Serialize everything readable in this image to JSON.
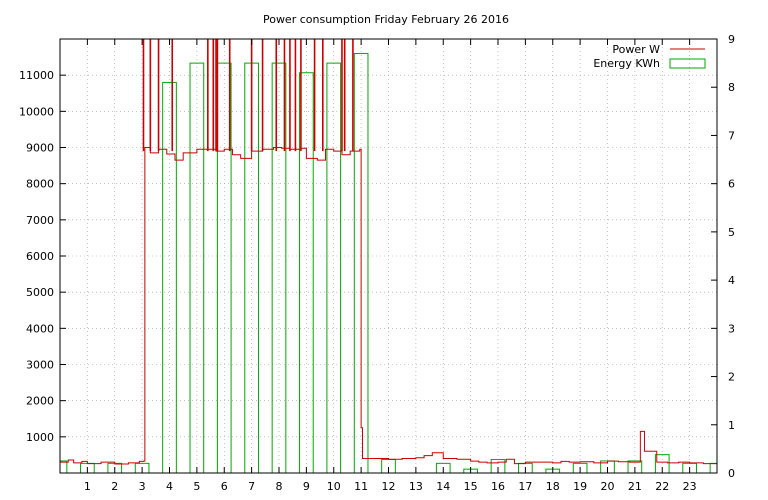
{
  "chart_data": {
    "type": "bar+line",
    "title": "Power consumption Friday February 26 2016",
    "x": {
      "range": [
        0,
        24
      ],
      "ticks": [
        1,
        2,
        3,
        4,
        5,
        6,
        7,
        8,
        9,
        10,
        11,
        12,
        13,
        14,
        15,
        16,
        17,
        18,
        19,
        20,
        21,
        22,
        23
      ]
    },
    "y_left": {
      "range": [
        0,
        12000
      ],
      "ticks": [
        1000,
        2000,
        3000,
        4000,
        5000,
        6000,
        7000,
        8000,
        9000,
        10000,
        11000
      ]
    },
    "y_right": {
      "range": [
        0,
        9
      ],
      "ticks": [
        0,
        1,
        2,
        3,
        4,
        5,
        6,
        7,
        8,
        9
      ]
    },
    "grid": true,
    "legend": {
      "placement": "top-right",
      "entries": [
        {
          "label": "Power W",
          "color": "#cc0000",
          "style": "line"
        },
        {
          "label": "Energy KWh",
          "color": "#00aa00",
          "style": "box"
        }
      ]
    },
    "energy_kwh": {
      "name": "Energy KWh",
      "color": "#00aa00",
      "axis": "right",
      "values": [
        0.25,
        0.2,
        0.2,
        0.2,
        8.1,
        8.5,
        8.5,
        8.5,
        8.5,
        8.3,
        8.5,
        8.7,
        0.28,
        0.0,
        0.2,
        0.08,
        0.28,
        0.2,
        0.08,
        0.2,
        0.25,
        0.25,
        0.38,
        0.2,
        0.2
      ]
    },
    "power_w": {
      "name": "Power W",
      "color": "#cc0000",
      "axis": "left",
      "points": [
        [
          0,
          300
        ],
        [
          0.3,
          360
        ],
        [
          0.5,
          280
        ],
        [
          0.8,
          320
        ],
        [
          1.0,
          260
        ],
        [
          1.5,
          300
        ],
        [
          2.0,
          250
        ],
        [
          2.5,
          280
        ],
        [
          2.9,
          320
        ],
        [
          3.05,
          330
        ],
        [
          3.1,
          9000
        ],
        [
          3.3,
          8850
        ],
        [
          3.6,
          8950
        ],
        [
          3.9,
          8820
        ],
        [
          4.2,
          8650
        ],
        [
          4.5,
          8850
        ],
        [
          4.8,
          8850
        ],
        [
          5.0,
          8950
        ],
        [
          5.4,
          8950
        ],
        [
          5.7,
          8900
        ],
        [
          6.0,
          8950
        ],
        [
          6.3,
          8800
        ],
        [
          6.6,
          8700
        ],
        [
          7.0,
          8900
        ],
        [
          7.4,
          8950
        ],
        [
          7.8,
          9000
        ],
        [
          8.1,
          8980
        ],
        [
          8.4,
          8950
        ],
        [
          8.8,
          8980
        ],
        [
          9.0,
          8700
        ],
        [
          9.4,
          8650
        ],
        [
          9.7,
          8950
        ],
        [
          10.0,
          8900
        ],
        [
          10.3,
          8800
        ],
        [
          10.6,
          8900
        ],
        [
          10.95,
          8950
        ],
        [
          11.0,
          1250
        ],
        [
          11.05,
          400
        ],
        [
          11.5,
          400
        ],
        [
          12.0,
          380
        ],
        [
          12.5,
          400
        ],
        [
          13.0,
          420
        ],
        [
          13.3,
          480
        ],
        [
          13.6,
          560
        ],
        [
          14.0,
          400
        ],
        [
          14.5,
          380
        ],
        [
          15.0,
          330
        ],
        [
          15.3,
          300
        ],
        [
          15.6,
          280
        ],
        [
          16.0,
          300
        ],
        [
          16.3,
          380
        ],
        [
          16.6,
          260
        ],
        [
          17.0,
          300
        ],
        [
          17.5,
          300
        ],
        [
          18.0,
          280
        ],
        [
          18.3,
          320
        ],
        [
          18.6,
          300
        ],
        [
          19.0,
          310
        ],
        [
          19.5,
          280
        ],
        [
          20.0,
          330
        ],
        [
          20.4,
          310
        ],
        [
          20.8,
          300
        ],
        [
          21.0,
          300
        ],
        [
          21.2,
          1150
        ],
        [
          21.35,
          600
        ],
        [
          21.6,
          600
        ],
        [
          21.8,
          300
        ],
        [
          22.2,
          280
        ],
        [
          22.6,
          300
        ],
        [
          23.0,
          280
        ],
        [
          23.5,
          260
        ],
        [
          24.0,
          250
        ]
      ],
      "spikes_above_axis": [
        3.05,
        3.3,
        3.6,
        4.1,
        5.4,
        5.6,
        5.7,
        5.75,
        6.2,
        7.0,
        7.4,
        7.9,
        8.2,
        8.4,
        8.6,
        8.8,
        9.3,
        9.6,
        10.3,
        10.4,
        10.7
      ]
    }
  }
}
